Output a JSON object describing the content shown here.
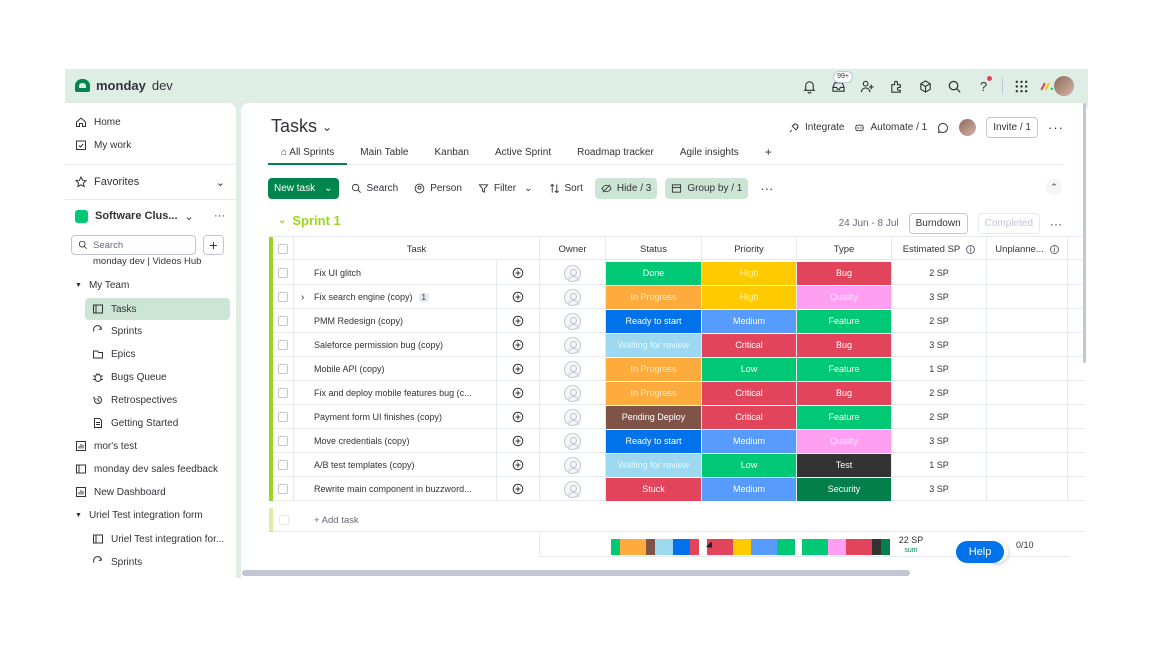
{
  "app": {
    "name_bold": "monday",
    "name_light": "dev",
    "badge_count": "99+"
  },
  "sidebar": {
    "home": "Home",
    "my_work": "My work",
    "favorites": "Favorites",
    "workspace": "Software Clus...",
    "search_placeholder": "Search",
    "cut_item": "monday dev | Videos Hub",
    "team": "My Team",
    "team_items": [
      "Tasks",
      "Sprints",
      "Epics",
      "Bugs Queue",
      "Retrospectives",
      "Getting Started"
    ],
    "boards": [
      "mor's test",
      "monday dev sales feedback",
      "New Dashboard"
    ],
    "folder2": "Uriel Test integration form",
    "folder2_items": [
      "Uriel Test integration for...",
      "Sprints"
    ]
  },
  "board": {
    "title": "Tasks",
    "integrate": "Integrate",
    "automate": "Automate / 1",
    "invite": "Invite / 1",
    "tabs": [
      "All Sprints",
      "Main Table",
      "Kanban",
      "Active Sprint",
      "Roadmap tracker",
      "Agile insights",
      "+"
    ],
    "toolbar": {
      "new_task": "New task",
      "search": "Search",
      "person": "Person",
      "filter": "Filter",
      "sort": "Sort",
      "hide": "Hide / 3",
      "group_by": "Group by / 1"
    },
    "group": {
      "name": "Sprint 1",
      "dates": "24 Jun - 8 Jul",
      "burndown": "Burndown",
      "completed": "Completed"
    },
    "columns": [
      "Task",
      "Owner",
      "Status",
      "Priority",
      "Type",
      "Estimated SP",
      "Unplanne..."
    ],
    "rows": [
      {
        "task": "Fix UI glitch",
        "count": "",
        "status": "Done",
        "status_color": "#00c875",
        "status_faded": false,
        "priority": "High",
        "priority_color": "#ffcb00",
        "priority_faded": true,
        "type": "Bug",
        "type_color": "#e2445c",
        "type_faded": false,
        "sp": "2 SP"
      },
      {
        "task": "Fix search engine (copy)",
        "count": "1",
        "status": "In Progress",
        "status_color": "#fdab3d",
        "status_faded": true,
        "priority": "High",
        "priority_color": "#ffcb00",
        "priority_faded": true,
        "type": "Quality",
        "type_color": "#ff9ff3",
        "type_faded": true,
        "sp": "3 SP"
      },
      {
        "task": "PMM Redesign (copy)",
        "count": "",
        "status": "Ready to start",
        "status_color": "#0073ea",
        "status_faded": false,
        "priority": "Medium",
        "priority_color": "#579bfc",
        "priority_faded": false,
        "type": "Feature",
        "type_color": "#00c875",
        "type_faded": false,
        "sp": "2 SP"
      },
      {
        "task": "Saleforce permission bug (copy)",
        "count": "",
        "status": "Waiting for review",
        "status_color": "#9cd9f0",
        "status_faded": true,
        "priority": "Critical",
        "priority_color": "#e2445c",
        "priority_faded": false,
        "type": "Bug",
        "type_color": "#e2445c",
        "type_faded": false,
        "sp": "3 SP"
      },
      {
        "task": "Mobile API (copy)",
        "count": "",
        "status": "In Progress",
        "status_color": "#fdab3d",
        "status_faded": true,
        "priority": "Low",
        "priority_color": "#00c875",
        "priority_faded": false,
        "type": "Feature",
        "type_color": "#00c875",
        "type_faded": false,
        "sp": "1 SP"
      },
      {
        "task": "Fix and deploy mobile features bug (c...",
        "count": "",
        "status": "In Progress",
        "status_color": "#fdab3d",
        "status_faded": true,
        "priority": "Critical",
        "priority_color": "#e2445c",
        "priority_faded": false,
        "type": "Bug",
        "type_color": "#e2445c",
        "type_faded": false,
        "sp": "2 SP"
      },
      {
        "task": "Payment form UI finishes (copy)",
        "count": "",
        "status": "Pending Deploy",
        "status_color": "#7f5347",
        "status_faded": false,
        "priority": "Critical",
        "priority_color": "#e2445c",
        "priority_faded": false,
        "type": "Feature",
        "type_color": "#00c875",
        "type_faded": false,
        "sp": "2 SP"
      },
      {
        "task": "Move credentials (copy)",
        "count": "",
        "status": "Ready to start",
        "status_color": "#0073ea",
        "status_faded": false,
        "priority": "Medium",
        "priority_color": "#579bfc",
        "priority_faded": false,
        "type": "Quality",
        "type_color": "#ff9ff3",
        "type_faded": true,
        "sp": "3 SP"
      },
      {
        "task": "A/B test templates (copy)",
        "count": "",
        "status": "Waiting for review",
        "status_color": "#9cd9f0",
        "status_faded": true,
        "priority": "Low",
        "priority_color": "#00c875",
        "priority_faded": false,
        "type": "Test",
        "type_color": "#333333",
        "type_faded": false,
        "sp": "1 SP"
      },
      {
        "task": "Rewrite main component in buzzword...",
        "count": "",
        "status": "Stuck",
        "status_color": "#e2445c",
        "status_faded": false,
        "priority": "Medium",
        "priority_color": "#579bfc",
        "priority_faded": false,
        "type": "Security",
        "type_color": "#037f4c",
        "type_faded": false,
        "sp": "3 SP"
      }
    ],
    "add_task": "+ Add task",
    "summary": {
      "sp_total": "22 SP",
      "sp_label": "sum",
      "unplanned": "0/10"
    },
    "summary_bars": {
      "status": [
        "#00c875",
        "#fdab3d",
        "#7f5347",
        "#9cd9f0",
        "#0073ea",
        "#e2445c"
      ],
      "status_w": [
        1,
        3,
        1,
        2,
        2,
        1
      ],
      "priority": [
        "#e2445c",
        "#ffcb00",
        "#579bfc",
        "#00c875"
      ],
      "priority_w": [
        3,
        2,
        3,
        2
      ],
      "type": [
        "#00c875",
        "#ff9ff3",
        "#e2445c",
        "#333333",
        "#037f4c"
      ],
      "type_w": [
        3,
        2,
        3,
        1,
        1
      ]
    }
  },
  "help": "Help"
}
